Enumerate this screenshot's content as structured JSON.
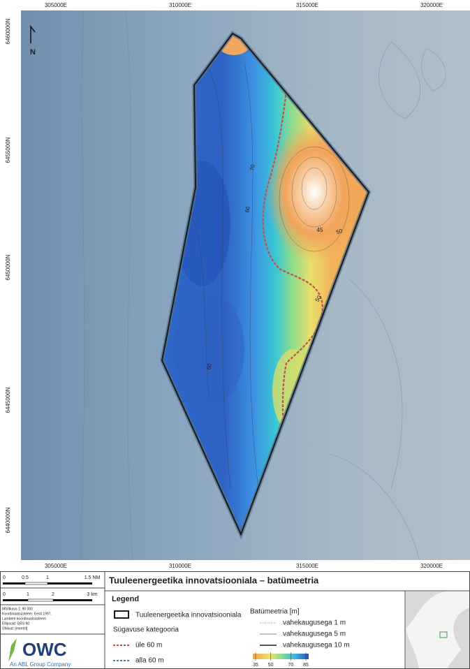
{
  "map": {
    "x_labels_top": [
      "305000E",
      "310000E",
      "315000E",
      "320000E"
    ],
    "x_labels_bottom": [
      "305000E",
      "310000E",
      "315000E",
      "320000E"
    ],
    "y_labels": [
      "6460000N",
      "6455000N",
      "6450000N",
      "6445000N",
      "6440000N"
    ],
    "north": "N",
    "contour_labels": [
      "70",
      "45",
      "50",
      "60",
      "60",
      "50"
    ]
  },
  "scale": {
    "nm": [
      "0",
      "0.5",
      "1",
      "1.5 NM"
    ],
    "km": [
      "0",
      "1",
      "2",
      "3 km"
    ],
    "info": [
      "Mõõtkava 1: 90 000",
      "Koordinaatsüsteem: Eesti 1997,",
      "Lamberti koordinaatsüsteem",
      "Ellipsoid: GRS 80",
      "Ühikud: [meetrit]"
    ]
  },
  "logo": {
    "name": "OWC",
    "tagline": "An ABL Group Company"
  },
  "title": "Tuuleenergeetika innovatsiooniala – batümeetria",
  "legend": {
    "heading": "Legend",
    "area": "Tuuleenergeetika innovatsiooniala",
    "depth_heading": "Sügavuse kategooria",
    "over": "üle 60 m",
    "under": "alla 60 m",
    "bathy_heading": "Batümeetria [m]",
    "c1": "vahekaugusega 1 m",
    "c5": "vahekaugusega 5 m",
    "c10": "vahekaugusega 10 m",
    "colorbar_ticks": [
      35,
      50,
      70,
      85
    ]
  }
}
